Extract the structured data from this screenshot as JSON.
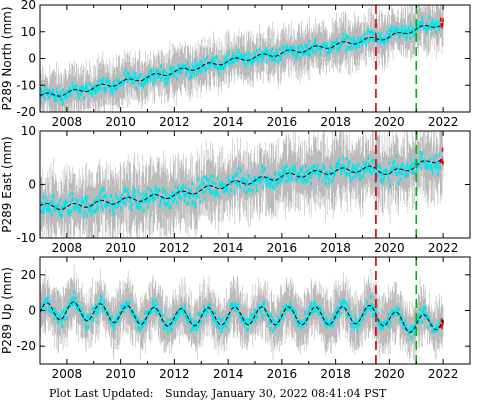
{
  "footer": {
    "label": "Plot Last Updated:",
    "timestamp": "Sunday, January 30, 2022 08:41:04 PST"
  },
  "colors": {
    "error_bars": "#aaaaaa",
    "daily": "#00e5ee",
    "model": "#000000",
    "recent": "#ff0000",
    "event_red": "#cc0000",
    "event_green": "#00b000"
  },
  "chart_data": [
    {
      "type": "scatter",
      "ylabel": "P289 North (mm)",
      "xlim": [
        2007.0,
        2023.0
      ],
      "ylim": [
        -20,
        20
      ],
      "xticks": [
        2008,
        2010,
        2012,
        2014,
        2016,
        2018,
        2020,
        2022
      ],
      "yticks": [
        -20,
        -10,
        0,
        10,
        20
      ],
      "event_lines": [
        {
          "x": 2019.5,
          "color": "red",
          "style": "dashed"
        },
        {
          "x": 2021.0,
          "color": "green",
          "style": "dashed"
        }
      ],
      "trend": {
        "x": [
          2007.0,
          2008,
          2010,
          2012,
          2014,
          2016,
          2018,
          2019.5,
          2020,
          2021,
          2022.0
        ],
        "y": [
          -14,
          -13,
          -9,
          -5,
          -1,
          2,
          5,
          7.5,
          8,
          11,
          13
        ]
      },
      "scatter_amplitude": 4,
      "error_bar_amplitude": 7,
      "seasonal_amplitude": 0.8
    },
    {
      "type": "scatter",
      "ylabel": "P289 East (mm)",
      "xlim": [
        2007.0,
        2023.0
      ],
      "ylim": [
        -10,
        10
      ],
      "xticks": [
        2008,
        2010,
        2012,
        2014,
        2016,
        2018,
        2020,
        2022
      ],
      "yticks": [
        -10,
        0,
        10
      ],
      "event_lines": [
        {
          "x": 2019.5,
          "color": "red",
          "style": "dashed"
        },
        {
          "x": 2021.0,
          "color": "green",
          "style": "dashed"
        }
      ],
      "trend": {
        "x": [
          2007.0,
          2008,
          2010,
          2012,
          2014,
          2016,
          2018,
          2019.5,
          2020,
          2021,
          2022.0
        ],
        "y": [
          -4,
          -4.2,
          -3,
          -2,
          0,
          1.5,
          2.5,
          3,
          2,
          3.5,
          5
        ]
      },
      "scatter_amplitude": 3,
      "error_bar_amplitude": 5,
      "seasonal_amplitude": 0.5
    },
    {
      "type": "scatter",
      "ylabel": "P289 Up (mm)",
      "xlim": [
        2007.0,
        2023.0
      ],
      "ylim": [
        -30,
        30
      ],
      "xticks": [
        2008,
        2010,
        2012,
        2014,
        2016,
        2018,
        2020,
        2022
      ],
      "yticks": [
        -20,
        0,
        20
      ],
      "event_lines": [
        {
          "x": 2019.5,
          "color": "red",
          "style": "dashed"
        },
        {
          "x": 2021.0,
          "color": "green",
          "style": "dashed"
        }
      ],
      "trend": {
        "x": [
          2007.0,
          2008,
          2010,
          2012,
          2014,
          2016,
          2018,
          2019.5,
          2020,
          2021,
          2022.0
        ],
        "y": [
          -1,
          0,
          -2,
          -4,
          -3,
          -3,
          -3,
          -2,
          -5,
          -8,
          -5
        ]
      },
      "scatter_amplitude": 6,
      "error_bar_amplitude": 12,
      "seasonal_amplitude": 5
    }
  ]
}
